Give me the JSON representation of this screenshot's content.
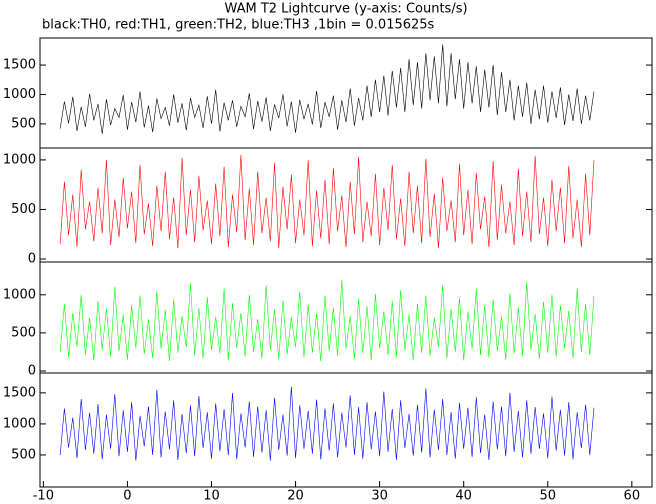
{
  "chart_data": [
    {
      "type": "line",
      "title": "WAM T2 Lightcurve (y-axis: Counts/s)",
      "subtitle": "black:TH0, red:TH1, green:TH2, blue:TH3 ,1bin = 0.015625s",
      "xlim": [
        -10.4,
        62.4
      ],
      "ylim": [
        90,
        1960
      ],
      "yticks": [
        500,
        1000,
        1500
      ],
      "x": [
        -8,
        -7.5,
        -7,
        -6.5,
        -6,
        -5.5,
        -5,
        -4.5,
        -4,
        -3.5,
        -3,
        -2.5,
        -2,
        -1.5,
        -1,
        -0.5,
        0,
        0.5,
        1,
        1.5,
        2,
        2.5,
        3,
        3.5,
        4,
        4.5,
        5,
        5.5,
        6,
        6.5,
        7,
        7.5,
        8,
        8.5,
        9,
        9.5,
        10,
        10.5,
        11,
        11.5,
        12,
        12.5,
        13,
        13.5,
        14,
        14.5,
        15,
        15.5,
        16,
        16.5,
        17,
        17.5,
        18,
        18.5,
        19,
        19.5,
        20,
        20.5,
        21,
        21.5,
        22,
        22.5,
        23,
        23.5,
        24,
        24.5,
        25,
        25.5,
        26,
        26.5,
        27,
        27.5,
        28,
        28.5,
        29,
        29.5,
        30,
        30.5,
        31,
        31.5,
        32,
        32.5,
        33,
        33.5,
        34,
        34.5,
        35,
        35.5,
        36,
        36.5,
        37,
        37.5,
        38,
        38.5,
        39,
        39.5,
        40,
        40.5,
        41,
        41.5,
        42,
        42.5,
        43,
        43.5,
        44,
        44.5,
        45,
        45.5,
        46,
        46.5,
        47,
        47.5,
        48,
        48.5,
        49,
        49.5,
        50,
        50.5,
        51,
        51.5,
        52,
        52.5,
        53,
        53.5,
        54,
        54.5,
        55,
        55.5
      ],
      "series": [
        {
          "color": "#000000",
          "values": [
            420,
            880,
            510,
            960,
            380,
            790,
            450,
            1010,
            560,
            840,
            330,
            920,
            480,
            760,
            610,
            990,
            400,
            870,
            530,
            1050,
            440,
            810,
            360,
            930,
            590,
            780,
            470,
            1000,
            520,
            850,
            390,
            940,
            610,
            820,
            430,
            970,
            500,
            1080,
            370,
            860,
            560,
            900,
            450,
            800,
            620,
            1020,
            410,
            890,
            540,
            950,
            380,
            830,
            600,
            1000,
            460,
            880,
            350,
            910,
            580,
            840,
            490,
            1060,
            430,
            870,
            620,
            980,
            400,
            900,
            530,
            1100,
            470,
            940,
            560,
            1150,
            620,
            1250,
            700,
            1320,
            640,
            1400,
            780,
            1450,
            700,
            1600,
            820,
            1550,
            760,
            1700,
            900,
            1650,
            850,
            1850,
            800,
            1700,
            920,
            1600,
            760,
            1550,
            850,
            1480,
            700,
            1420,
            780,
            1500,
            650,
            1380,
            700,
            1250,
            560,
            1150,
            620,
            1200,
            500,
            1080,
            580,
            1150,
            520,
            1050,
            600,
            1120,
            480,
            1000,
            550,
            1100,
            500,
            980,
            560,
            1050
          ]
        }
      ]
    },
    {
      "type": "line",
      "xlim": [
        -10.4,
        62.4
      ],
      "ylim": [
        -30,
        1120
      ],
      "yticks": [
        0,
        500,
        1000
      ],
      "x": [
        -8,
        -7.5,
        -7,
        -6.5,
        -6,
        -5.5,
        -5,
        -4.5,
        -4,
        -3.5,
        -3,
        -2.5,
        -2,
        -1.5,
        -1,
        -0.5,
        0,
        0.5,
        1,
        1.5,
        2,
        2.5,
        3,
        3.5,
        4,
        4.5,
        5,
        5.5,
        6,
        6.5,
        7,
        7.5,
        8,
        8.5,
        9,
        9.5,
        10,
        10.5,
        11,
        11.5,
        12,
        12.5,
        13,
        13.5,
        14,
        14.5,
        15,
        15.5,
        16,
        16.5,
        17,
        17.5,
        18,
        18.5,
        19,
        19.5,
        20,
        20.5,
        21,
        21.5,
        22,
        22.5,
        23,
        23.5,
        24,
        24.5,
        25,
        25.5,
        26,
        26.5,
        27,
        27.5,
        28,
        28.5,
        29,
        29.5,
        30,
        30.5,
        31,
        31.5,
        32,
        32.5,
        33,
        33.5,
        34,
        34.5,
        35,
        35.5,
        36,
        36.5,
        37,
        37.5,
        38,
        38.5,
        39,
        39.5,
        40,
        40.5,
        41,
        41.5,
        42,
        42.5,
        43,
        43.5,
        44,
        44.5,
        45,
        45.5,
        46,
        46.5,
        47,
        47.5,
        48,
        48.5,
        49,
        49.5,
        50,
        50.5,
        51,
        51.5,
        52,
        52.5,
        53,
        53.5,
        54,
        54.5,
        55,
        55.5
      ],
      "series": [
        {
          "color": "#ff0000",
          "values": [
            150,
            780,
            240,
            650,
            120,
            900,
            300,
            580,
            180,
            720,
            260,
            1000,
            140,
            600,
            220,
            820,
            310,
            680,
            160,
            950,
            250,
            560,
            130,
            740,
            280,
            880,
            200,
            620,
            110,
            1020,
            240,
            700,
            170,
            840,
            290,
            590,
            150,
            760,
            230,
            930,
            120,
            650,
            270,
            1050,
            190,
            710,
            140,
            880,
            260,
            620,
            180,
            970,
            110,
            730,
            300,
            850,
            160,
            600,
            240,
            1000,
            130,
            690,
            210,
            800,
            150,
            920,
            280,
            640,
            120,
            780,
            250,
            1030,
            170,
            580,
            230,
            860,
            140,
            720,
            290,
            950,
            200,
            610,
            130,
            880,
            260,
            740,
            160,
            1010,
            220,
            660,
            110,
            820,
            280,
            590,
            170,
            960,
            240,
            700,
            150,
            870,
            300,
            630,
            120,
            990,
            190,
            750,
            260,
            580,
            140,
            910,
            230,
            680,
            170,
            1040,
            250,
            620,
            130,
            800,
            280,
            720,
            160,
            940,
            210,
            600,
            120,
            860,
            240,
            1000
          ]
        }
      ]
    },
    {
      "type": "line",
      "xlim": [
        -10.4,
        62.4
      ],
      "ylim": [
        -26,
        1430
      ],
      "yticks": [
        0,
        500,
        1000
      ],
      "x": [
        -8,
        -7.5,
        -7,
        -6.5,
        -6,
        -5.5,
        -5,
        -4.5,
        -4,
        -3.5,
        -3,
        -2.5,
        -2,
        -1.5,
        -1,
        -0.5,
        0,
        0.5,
        1,
        1.5,
        2,
        2.5,
        3,
        3.5,
        4,
        4.5,
        5,
        5.5,
        6,
        6.5,
        7,
        7.5,
        8,
        8.5,
        9,
        9.5,
        10,
        10.5,
        11,
        11.5,
        12,
        12.5,
        13,
        13.5,
        14,
        14.5,
        15,
        15.5,
        16,
        16.5,
        17,
        17.5,
        18,
        18.5,
        19,
        19.5,
        20,
        20.5,
        21,
        21.5,
        22,
        22.5,
        23,
        23.5,
        24,
        24.5,
        25,
        25.5,
        26,
        26.5,
        27,
        27.5,
        28,
        28.5,
        29,
        29.5,
        30,
        30.5,
        31,
        31.5,
        32,
        32.5,
        33,
        33.5,
        34,
        34.5,
        35,
        35.5,
        36,
        36.5,
        37,
        37.5,
        38,
        38.5,
        39,
        39.5,
        40,
        40.5,
        41,
        41.5,
        42,
        42.5,
        43,
        43.5,
        44,
        44.5,
        45,
        45.5,
        46,
        46.5,
        47,
        47.5,
        48,
        48.5,
        49,
        49.5,
        50,
        50.5,
        51,
        51.5,
        52,
        52.5,
        53,
        53.5,
        54,
        54.5,
        55,
        55.5
      ],
      "series": [
        {
          "color": "#00ff00",
          "values": [
            250,
            880,
            180,
            760,
            320,
            1000,
            210,
            700,
            140,
            920,
            280,
            820,
            190,
            1100,
            260,
            740,
            150,
            860,
            300,
            990,
            220,
            680,
            170,
            1050,
            290,
            800,
            130,
            940,
            240,
            720,
            310,
            1150,
            200,
            830,
            160,
            970,
            270,
            710,
            230,
            1080,
            140,
            890,
            300,
            760,
            190,
            1000,
            250,
            680,
            170,
            1120,
            280,
            810,
            150,
            930,
            220,
            700,
            310,
            1040,
            180,
            870,
            240,
            760,
            130,
            990,
            260,
            830,
            200,
            1200,
            290,
            720,
            160,
            950,
            230,
            850,
            140,
            1010,
            300,
            780,
            210,
            920,
            180,
            1060,
            270,
            740,
            150,
            880,
            240,
            990,
            200,
            700,
            310,
            1130,
            170,
            820,
            250,
            960,
            140,
            780,
            290,
            1080,
            210,
            860,
            180,
            940,
            260,
            720,
            150,
            1020,
            230,
            830,
            200,
            1170,
            280,
            750,
            160,
            910,
            240,
            1000,
            190,
            860,
            300,
            790,
            170,
            1090,
            250,
            880,
            210,
            980
          ]
        }
      ]
    },
    {
      "type": "line",
      "xlim": [
        -10.4,
        62.4
      ],
      "ylim": [
        -16,
        1820
      ],
      "yticks": [
        500,
        1000,
        1500
      ],
      "xticks": [
        -10,
        0,
        10,
        20,
        30,
        40,
        50,
        60
      ],
      "x": [
        -8,
        -7.5,
        -7,
        -6.5,
        -6,
        -5.5,
        -5,
        -4.5,
        -4,
        -3.5,
        -3,
        -2.5,
        -2,
        -1.5,
        -1,
        -0.5,
        0,
        0.5,
        1,
        1.5,
        2,
        2.5,
        3,
        3.5,
        4,
        4.5,
        5,
        5.5,
        6,
        6.5,
        7,
        7.5,
        8,
        8.5,
        9,
        9.5,
        10,
        10.5,
        11,
        11.5,
        12,
        12.5,
        13,
        13.5,
        14,
        14.5,
        15,
        15.5,
        16,
        16.5,
        17,
        17.5,
        18,
        18.5,
        19,
        19.5,
        20,
        20.5,
        21,
        21.5,
        22,
        22.5,
        23,
        23.5,
        24,
        24.5,
        25,
        25.5,
        26,
        26.5,
        27,
        27.5,
        28,
        28.5,
        29,
        29.5,
        30,
        30.5,
        31,
        31.5,
        32,
        32.5,
        33,
        33.5,
        34,
        34.5,
        35,
        35.5,
        36,
        36.5,
        37,
        37.5,
        38,
        38.5,
        39,
        39.5,
        40,
        40.5,
        41,
        41.5,
        42,
        42.5,
        43,
        43.5,
        44,
        44.5,
        45,
        45.5,
        46,
        46.5,
        47,
        47.5,
        48,
        48.5,
        49,
        49.5,
        50,
        50.5,
        51,
        51.5,
        52,
        52.5,
        53,
        53.5,
        54,
        54.5,
        55,
        55.5
      ],
      "series": [
        {
          "color": "#0000ff",
          "values": [
            500,
            1250,
            620,
            1100,
            450,
            1400,
            580,
            1180,
            520,
            1320,
            430,
            1150,
            600,
            1480,
            480,
            1220,
            550,
            1350,
            410,
            1130,
            640,
            1280,
            500,
            1550,
            460,
            1200,
            590,
            1380,
            420,
            1160,
            530,
            1300,
            480,
            1450,
            610,
            1190,
            440,
            1330,
            560,
            1240,
            500,
            1500,
            430,
            1170,
            620,
            1360,
            470,
            1280,
            540,
            1220,
            410,
            1420,
            580,
            1150,
            490,
            1600,
            450,
            1300,
            600,
            1210,
            520,
            1390,
            430,
            1250,
            570,
            1330,
            460,
            1180,
            620,
            1460,
            500,
            1270,
            440,
            1350,
            590,
            1200,
            480,
            1520,
            550,
            1240,
            420,
            1380,
            610,
            1160,
            490,
            1310,
            540,
            1570,
            460,
            1230,
            580,
            1400,
            500,
            1190,
            440,
            1340,
            600,
            1260,
            470,
            1430,
            530,
            1150,
            420,
            1360,
            590,
            1280,
            480,
            1500,
            550,
            1210,
            460,
            1380,
            520,
            1270,
            600,
            1170,
            450,
            1440,
            570,
            1230,
            490,
            1350,
            430,
            1190,
            610,
            1310,
            500,
            1260
          ]
        }
      ]
    }
  ]
}
